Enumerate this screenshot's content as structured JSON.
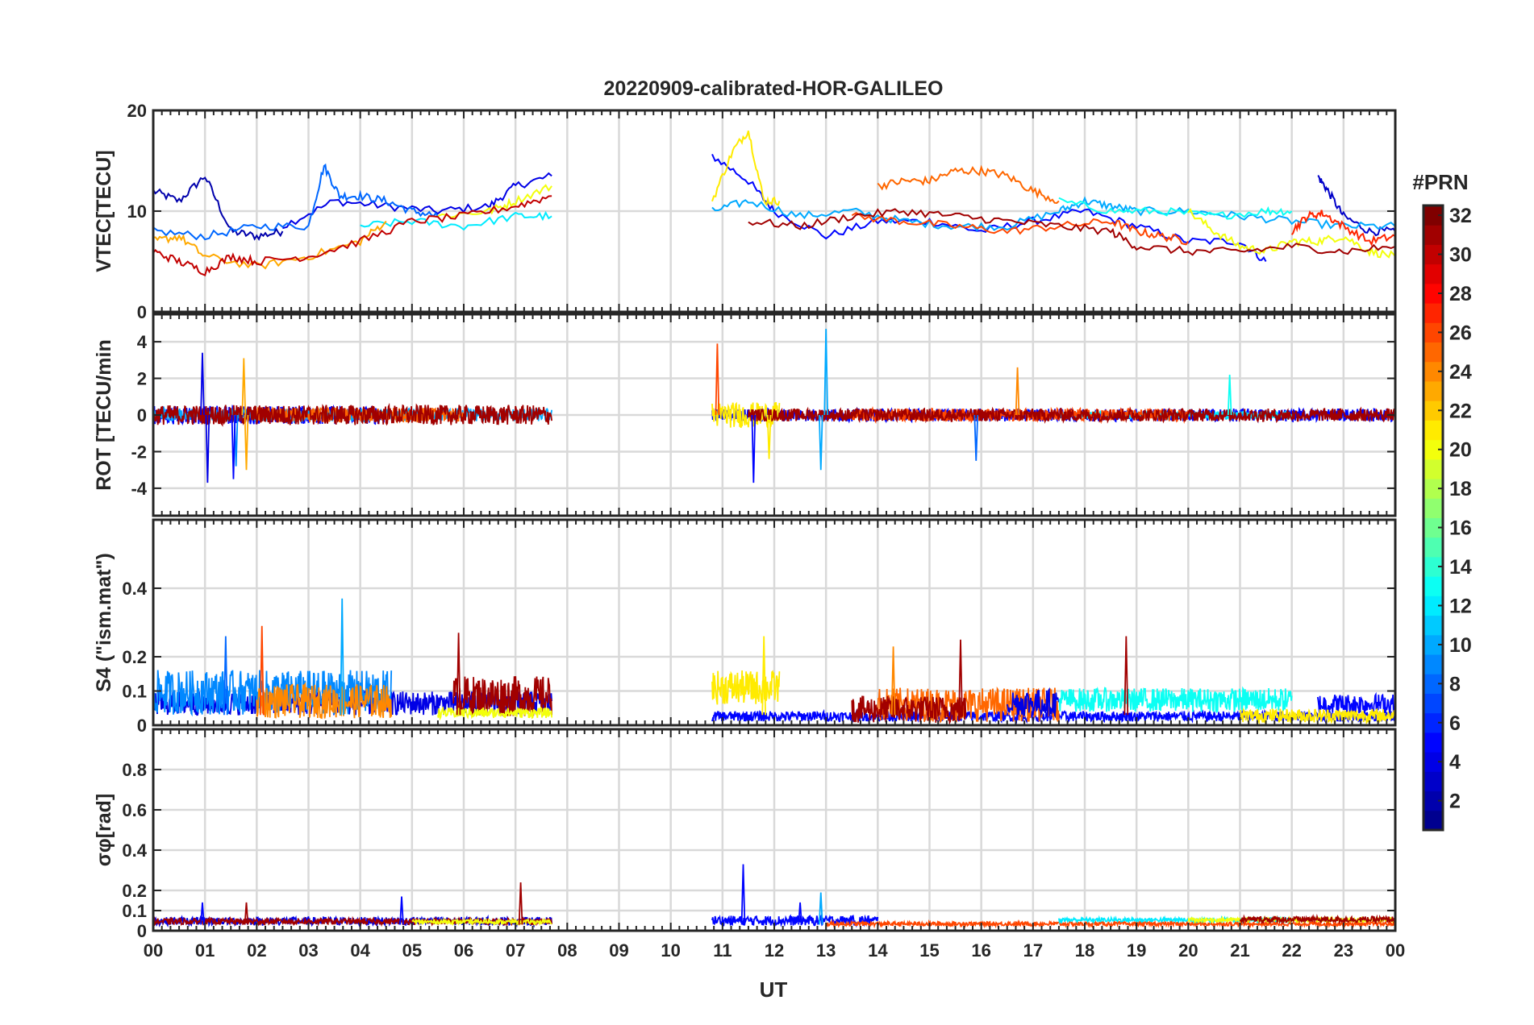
{
  "title": "20220909-calibrated-HOR-GALILEO",
  "xlabel": "UT",
  "x_ticks": [
    "00",
    "01",
    "02",
    "03",
    "04",
    "05",
    "06",
    "07",
    "08",
    "09",
    "10",
    "11",
    "12",
    "13",
    "14",
    "15",
    "16",
    "17",
    "18",
    "19",
    "20",
    "21",
    "22",
    "23",
    "00"
  ],
  "colorbar": {
    "label": "#PRN",
    "ticks": [
      2,
      4,
      6,
      8,
      10,
      12,
      14,
      16,
      18,
      20,
      22,
      24,
      26,
      28,
      30,
      32
    ],
    "range": [
      1,
      32
    ],
    "colormap": "jet",
    "colors": [
      "#00008f",
      "#0000ff",
      "#0080ff",
      "#00ffff",
      "#80ff80",
      "#ffff00",
      "#ff8000",
      "#ff0000",
      "#800000"
    ]
  },
  "chart_data": [
    {
      "type": "line",
      "ylabel": "VTEC[TECU]",
      "ylim": [
        0,
        20
      ],
      "y_ticks": [
        "0",
        "10",
        "20"
      ],
      "y_tick_values": [
        0,
        10,
        20
      ],
      "xlim": [
        0,
        24
      ],
      "grid": true,
      "data_gap_hours": [
        7.8,
        10.8
      ],
      "series": [
        {
          "prn": 2,
          "x": [
            0.0,
            0.5,
            1.0,
            1.5,
            2.0,
            2.5
          ],
          "y": [
            12.0,
            11.0,
            13.5,
            8.0,
            7.5,
            8.0
          ]
        },
        {
          "prn": 4,
          "x": [
            2.5,
            3.5,
            4.5,
            5.5,
            6.5,
            7.0,
            7.7
          ],
          "y": [
            8.5,
            11.0,
            10.5,
            10.0,
            10.5,
            12.5,
            13.5
          ]
        },
        {
          "prn": 5,
          "x": [
            10.8,
            11.5,
            12.0,
            13.0,
            14.0,
            15.0,
            16.0,
            17.0,
            18.0,
            19.0,
            20.0,
            21.0,
            21.5
          ],
          "y": [
            15.5,
            13.0,
            10.0,
            7.5,
            9.0,
            9.0,
            8.0,
            9.0,
            10.0,
            8.5,
            7.0,
            7.0,
            5.0
          ]
        },
        {
          "prn": 3,
          "x": [
            22.5,
            22.7,
            23.0,
            23.5,
            24.0
          ],
          "y": [
            13.5,
            12.0,
            9.5,
            8.0,
            8.0
          ]
        },
        {
          "prn": 8,
          "x": [
            0.0,
            1.0,
            2.0,
            3.0,
            3.3,
            3.6,
            4.0,
            4.5,
            5.0,
            5.5
          ],
          "y": [
            8.0,
            7.5,
            8.5,
            8.5,
            14.5,
            11.5,
            11.5,
            11.0,
            10.0,
            9.5
          ]
        },
        {
          "prn": 10,
          "x": [
            10.8,
            11.5,
            12.5,
            13.5,
            14.5,
            15.5,
            16.5,
            17.5,
            18.0,
            18.5,
            19.0,
            20.0,
            21.0,
            22.0,
            23.0,
            24.0
          ],
          "y": [
            10.0,
            11.0,
            9.5,
            10.0,
            9.0,
            8.5,
            8.5,
            10.0,
            11.0,
            10.5,
            10.0,
            10.0,
            9.5,
            9.0,
            8.5,
            8.5
          ]
        },
        {
          "prn": 12,
          "x": [
            4.0,
            5.0,
            6.0,
            7.0,
            7.7
          ],
          "y": [
            8.5,
            9.0,
            8.5,
            9.5,
            9.5
          ]
        },
        {
          "prn": 13,
          "x": [
            17.5,
            18.5,
            19.5,
            20.5,
            21.5,
            22.0
          ],
          "y": [
            11.0,
            10.0,
            10.0,
            9.5,
            10.0,
            10.0
          ]
        },
        {
          "prn": 20,
          "x": [
            5.5,
            6.5,
            7.0,
            7.7
          ],
          "y": [
            9.5,
            10.0,
            11.0,
            12.5
          ]
        },
        {
          "prn": 21,
          "x": [
            10.8,
            11.2,
            11.5,
            11.8,
            12.1
          ],
          "y": [
            11.0,
            16.0,
            18.0,
            11.0,
            11.0
          ]
        },
        {
          "prn": 20,
          "x": [
            20.0,
            20.5,
            21.0,
            21.5,
            22.0,
            22.5,
            23.0,
            23.5,
            24.0
          ],
          "y": [
            10.0,
            8.0,
            6.5,
            6.0,
            7.0,
            7.0,
            7.5,
            6.0,
            5.5
          ]
        },
        {
          "prn": 23,
          "x": [
            0.0,
            0.5,
            1.0,
            2.0,
            3.0,
            4.0,
            4.5
          ],
          "y": [
            7.0,
            7.5,
            5.5,
            4.5,
            5.5,
            7.0,
            9.0
          ]
        },
        {
          "prn": 25,
          "x": [
            14.0,
            14.5,
            15.0,
            15.5,
            16.0,
            16.5,
            17.0,
            17.5
          ],
          "y": [
            12.5,
            13.0,
            13.0,
            14.0,
            14.0,
            13.5,
            12.0,
            11.0
          ]
        },
        {
          "prn": 26,
          "x": [
            13.5,
            14.5,
            15.5,
            16.5,
            17.5,
            18.5,
            19.0,
            19.5,
            20.0
          ],
          "y": [
            9.5,
            9.0,
            8.5,
            8.0,
            8.5,
            9.0,
            8.0,
            7.5,
            7.0
          ]
        },
        {
          "prn": 27,
          "x": [
            22.0,
            22.3,
            22.6,
            23.0,
            23.5,
            24.0
          ],
          "y": [
            8.0,
            9.5,
            9.8,
            8.5,
            7.0,
            7.5
          ]
        },
        {
          "prn": 30,
          "x": [
            0.0,
            0.5,
            1.0,
            1.5,
            2.0,
            3.0,
            4.0,
            5.0,
            6.0,
            7.0,
            7.7
          ],
          "y": [
            6.0,
            5.0,
            4.0,
            5.5,
            5.0,
            5.5,
            7.0,
            9.0,
            9.5,
            10.5,
            11.5
          ]
        },
        {
          "prn": 31,
          "x": [
            11.5,
            12.5,
            13.5,
            14.5,
            15.5,
            16.5,
            17.5,
            18.5,
            19.0,
            20.0,
            21.0,
            22.0,
            23.0,
            24.0
          ],
          "y": [
            9.0,
            8.5,
            9.5,
            10.0,
            9.5,
            9.0,
            8.5,
            8.0,
            6.5,
            6.0,
            6.0,
            6.5,
            6.0,
            6.5
          ]
        }
      ]
    },
    {
      "type": "line",
      "ylabel": "ROT [TECU/min",
      "ylim": [
        -5.5,
        5.5
      ],
      "y_ticks": [
        "-4",
        "-2",
        "0",
        "2",
        "4"
      ],
      "y_tick_values": [
        -4,
        -2,
        0,
        2,
        4
      ],
      "xlim": [
        0,
        24
      ],
      "grid": true,
      "noise_segments": [
        {
          "prn": 5,
          "x_range": [
            0.0,
            4.5
          ],
          "amplitude": 0.5
        },
        {
          "prn": 10,
          "x_range": [
            0.0,
            7.7
          ],
          "amplitude": 0.35
        },
        {
          "prn": 25,
          "x_range": [
            2.0,
            6.0
          ],
          "amplitude": 0.4
        },
        {
          "prn": 31,
          "x_range": [
            0.0,
            7.7
          ],
          "amplitude": 0.55
        },
        {
          "prn": 5,
          "x_range": [
            10.8,
            24.0
          ],
          "amplitude": 0.35
        },
        {
          "prn": 12,
          "x_range": [
            17.5,
            22.0
          ],
          "amplitude": 0.2
        },
        {
          "prn": 21,
          "x_range": [
            10.8,
            12.1
          ],
          "amplitude": 0.7
        },
        {
          "prn": 26,
          "x_range": [
            13.5,
            20.0
          ],
          "amplitude": 0.35
        },
        {
          "prn": 31,
          "x_range": [
            11.5,
            24.0
          ],
          "amplitude": 0.35
        }
      ],
      "spikes": [
        {
          "prn": 4,
          "x": 0.95,
          "y": 3.4
        },
        {
          "prn": 4,
          "x": 1.05,
          "y": -3.7
        },
        {
          "prn": 9,
          "x": 1.6,
          "y": -2.8
        },
        {
          "prn": 23,
          "x": 1.75,
          "y": 3.1
        },
        {
          "prn": 23,
          "x": 1.8,
          "y": -3.0
        },
        {
          "prn": 5,
          "x": 1.55,
          "y": -3.5
        },
        {
          "prn": 26,
          "x": 10.9,
          "y": 3.9
        },
        {
          "prn": 5,
          "x": 11.6,
          "y": -3.7
        },
        {
          "prn": 21,
          "x": 11.9,
          "y": -2.4
        },
        {
          "prn": 10,
          "x": 13.0,
          "y": 4.7
        },
        {
          "prn": 10,
          "x": 12.9,
          "y": -3.0
        },
        {
          "prn": 24,
          "x": 16.7,
          "y": 2.6
        },
        {
          "prn": 8,
          "x": 15.9,
          "y": -2.5
        },
        {
          "prn": 13,
          "x": 20.8,
          "y": 2.2
        }
      ]
    },
    {
      "type": "line",
      "ylabel": "S4 (\"ism.mat\")",
      "ylim": [
        0,
        0.6
      ],
      "y_ticks": [
        "0",
        "0.1",
        "0.2",
        "0.4"
      ],
      "y_tick_values": [
        0,
        0.1,
        0.2,
        0.4
      ],
      "xlim": [
        0,
        24
      ],
      "grid": true,
      "noise_segments": [
        {
          "prn": 4,
          "x_range": [
            0.0,
            7.7
          ],
          "base": 0.05,
          "amplitude": 0.07
        },
        {
          "prn": 9,
          "x_range": [
            0.0,
            4.6
          ],
          "base": 0.07,
          "amplitude": 0.13
        },
        {
          "prn": 24,
          "x_range": [
            2.0,
            4.6
          ],
          "base": 0.05,
          "amplitude": 0.1
        },
        {
          "prn": 31,
          "x_range": [
            5.8,
            7.7
          ],
          "base": 0.06,
          "amplitude": 0.12
        },
        {
          "prn": 20,
          "x_range": [
            5.5,
            7.7
          ],
          "base": 0.03,
          "amplitude": 0.03
        },
        {
          "prn": 21,
          "x_range": [
            10.8,
            12.1
          ],
          "base": 0.09,
          "amplitude": 0.1
        },
        {
          "prn": 5,
          "x_range": [
            10.8,
            24.0
          ],
          "base": 0.02,
          "amplitude": 0.03
        },
        {
          "prn": 25,
          "x_range": [
            14.0,
            17.5
          ],
          "base": 0.04,
          "amplitude": 0.1
        },
        {
          "prn": 31,
          "x_range": [
            13.5,
            15.7
          ],
          "base": 0.03,
          "amplitude": 0.08
        },
        {
          "prn": 4,
          "x_range": [
            16.5,
            17.5
          ],
          "base": 0.05,
          "amplitude": 0.08
        },
        {
          "prn": 13,
          "x_range": [
            17.5,
            22.0
          ],
          "base": 0.06,
          "amplitude": 0.07
        },
        {
          "prn": 5,
          "x_range": [
            22.5,
            24.0
          ],
          "base": 0.05,
          "amplitude": 0.06
        },
        {
          "prn": 21,
          "x_range": [
            21.0,
            24.0
          ],
          "base": 0.02,
          "amplitude": 0.04
        }
      ],
      "spikes": [
        {
          "prn": 10,
          "x": 3.65,
          "y": 0.37
        },
        {
          "prn": 26,
          "x": 2.1,
          "y": 0.29
        },
        {
          "prn": 8,
          "x": 1.4,
          "y": 0.26
        },
        {
          "prn": 31,
          "x": 5.9,
          "y": 0.27
        },
        {
          "prn": 21,
          "x": 11.8,
          "y": 0.26
        },
        {
          "prn": 31,
          "x": 15.6,
          "y": 0.25
        },
        {
          "prn": 31,
          "x": 18.8,
          "y": 0.26
        },
        {
          "prn": 24,
          "x": 14.3,
          "y": 0.23
        }
      ]
    },
    {
      "type": "line",
      "ylabel": "σφ[rad]",
      "ylim": [
        0,
        1.0
      ],
      "y_ticks": [
        "0",
        "0.1",
        "0.2",
        "0.4",
        "0.6",
        "0.8"
      ],
      "y_tick_values": [
        0,
        0.1,
        0.2,
        0.4,
        0.6,
        0.8
      ],
      "xlim": [
        0,
        24
      ],
      "grid": true,
      "noise_segments": [
        {
          "prn": 4,
          "x_range": [
            0.0,
            7.7
          ],
          "base": 0.04,
          "amplitude": 0.04
        },
        {
          "prn": 31,
          "x_range": [
            0.0,
            7.7
          ],
          "base": 0.04,
          "amplitude": 0.03
        },
        {
          "prn": 20,
          "x_range": [
            5.0,
            7.7
          ],
          "base": 0.04,
          "amplitude": 0.02
        },
        {
          "prn": 5,
          "x_range": [
            10.8,
            14.0
          ],
          "base": 0.04,
          "amplitude": 0.05
        },
        {
          "prn": 26,
          "x_range": [
            13.0,
            24.0
          ],
          "base": 0.03,
          "amplitude": 0.02
        },
        {
          "prn": 12,
          "x_range": [
            17.5,
            22.0
          ],
          "base": 0.05,
          "amplitude": 0.02
        },
        {
          "prn": 20,
          "x_range": [
            20.0,
            24.0
          ],
          "base": 0.05,
          "amplitude": 0.02
        },
        {
          "prn": 31,
          "x_range": [
            21.0,
            24.0
          ],
          "base": 0.05,
          "amplitude": 0.03
        }
      ],
      "spikes": [
        {
          "prn": 5,
          "x": 11.4,
          "y": 0.33
        },
        {
          "prn": 31,
          "x": 7.1,
          "y": 0.24
        },
        {
          "prn": 10,
          "x": 12.9,
          "y": 0.19
        },
        {
          "prn": 5,
          "x": 12.5,
          "y": 0.14
        },
        {
          "prn": 5,
          "x": 4.8,
          "y": 0.17
        },
        {
          "prn": 31,
          "x": 1.8,
          "y": 0.14
        },
        {
          "prn": 5,
          "x": 0.95,
          "y": 0.14
        }
      ]
    }
  ]
}
